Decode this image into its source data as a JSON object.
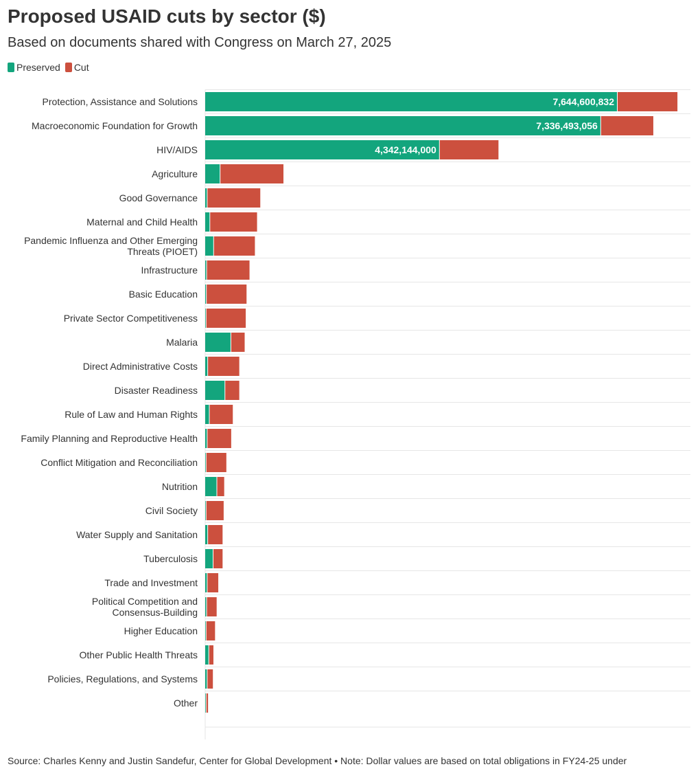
{
  "title": "Proposed USAID cuts by sector ($)",
  "subtitle": "Based on documents shared with Congress on March 27, 2025",
  "source": "Source: Charles Kenny and Justin Sandefur, Center for Global Development • Note: Dollar values are based on total obligations in FY24-25 under",
  "colors": {
    "preserved": "#13a57d",
    "cut": "#cc503e",
    "grid": "#e6e6e6",
    "text": "#333333"
  },
  "chart_data": {
    "type": "bar",
    "orientation": "horizontal",
    "stacked": true,
    "title": "Proposed USAID cuts by sector ($)",
    "subtitle": "Based on documents shared with Congress on March 27, 2025",
    "xlim": [
      0,
      9000000000
    ],
    "grid": true,
    "legend_position": "top-left",
    "categories": [
      "Protection, Assistance and Solutions",
      "Macroeconomic Foundation for Growth",
      "HIV/AIDS",
      "Agriculture",
      "Good Governance",
      "Maternal and Child Health",
      "Pandemic Influenza and Other Emerging Threats (PIOET)",
      "Infrastructure",
      "Basic Education",
      "Private Sector Competitiveness",
      "Malaria",
      "Direct Administrative Costs",
      "Disaster Readiness",
      "Rule of Law and Human Rights",
      "Family Planning and Reproductive Health",
      "Conflict Mitigation and Reconciliation",
      "Nutrition",
      "Civil Society",
      "Water Supply and Sanitation",
      "Tuberculosis",
      "Trade and Investment",
      "Political Competition and Consensus-Building",
      "Higher Education",
      "Other Public Health Threats",
      "Policies, Regulations, and Systems",
      "Other"
    ],
    "category_lines": [
      [
        "Protection, Assistance and Solutions"
      ],
      [
        "Macroeconomic Foundation for Growth"
      ],
      [
        "HIV/AIDS"
      ],
      [
        "Agriculture"
      ],
      [
        "Good Governance"
      ],
      [
        "Maternal and Child Health"
      ],
      [
        "Pandemic Influenza and Other Emerging",
        "Threats (PIOET)"
      ],
      [
        "Infrastructure"
      ],
      [
        "Basic Education"
      ],
      [
        "Private Sector Competitiveness"
      ],
      [
        "Malaria"
      ],
      [
        "Direct Administrative Costs"
      ],
      [
        "Disaster Readiness"
      ],
      [
        "Rule of Law and Human Rights"
      ],
      [
        "Family Planning and Reproductive Health"
      ],
      [
        "Conflict Mitigation and Reconciliation"
      ],
      [
        "Nutrition"
      ],
      [
        "Civil Society"
      ],
      [
        "Water Supply and Sanitation"
      ],
      [
        "Tuberculosis"
      ],
      [
        "Trade and Investment"
      ],
      [
        "Political Competition and",
        "Consensus-Building"
      ],
      [
        "Higher Education"
      ],
      [
        "Other Public Health Threats"
      ],
      [
        "Policies, Regulations, and Systems"
      ],
      [
        "Other"
      ]
    ],
    "series": [
      {
        "name": "Preserved",
        "color": "#13a57d",
        "values": [
          7644600832,
          7336493056,
          4342144000,
          270000000,
          30000000,
          80000000,
          150000000,
          20000000,
          15000000,
          10000000,
          470000000,
          40000000,
          360000000,
          70000000,
          30000000,
          10000000,
          210000000,
          10000000,
          40000000,
          140000000,
          30000000,
          20000000,
          10000000,
          60000000,
          30000000,
          10000000
        ],
        "labels": [
          "7,644,600,832",
          "7,336,493,056",
          "4,342,144,000",
          "",
          "",
          "",
          "",
          "",
          "",
          "",
          "",
          "",
          "",
          "",
          "",
          "",
          "",
          "",
          "",
          "",
          "",
          "",
          "",
          "",
          "",
          ""
        ]
      },
      {
        "name": "Cut",
        "color": "#cc503e",
        "values": [
          1110000000,
          970000000,
          1090000000,
          1170000000,
          980000000,
          870000000,
          760000000,
          790000000,
          740000000,
          730000000,
          250000000,
          580000000,
          260000000,
          430000000,
          440000000,
          370000000,
          130000000,
          320000000,
          270000000,
          170000000,
          200000000,
          180000000,
          160000000,
          80000000,
          100000000,
          30000000
        ]
      }
    ]
  }
}
